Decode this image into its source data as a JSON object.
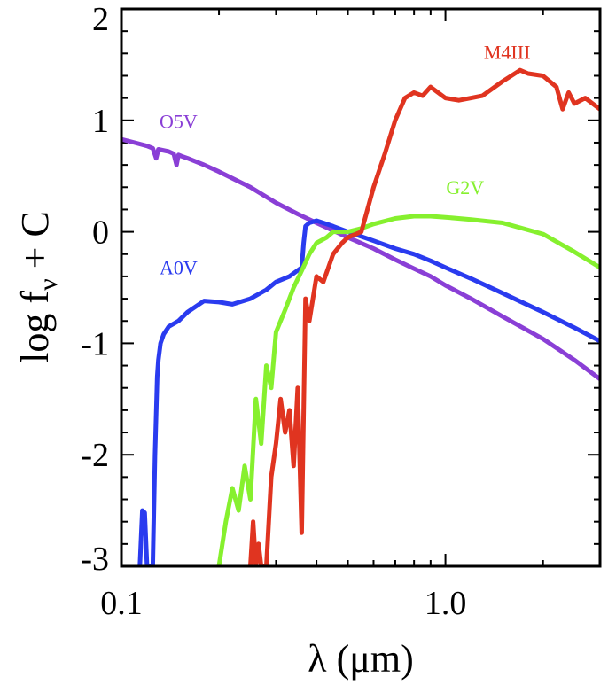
{
  "chart_data": {
    "type": "line",
    "xlabel": "λ (μm)",
    "ylabel": "log f_ν + C",
    "ylabel_main": "log f",
    "ylabel_sub": "ν",
    "ylabel_tail": " + C",
    "xscale": "log",
    "xlim": [
      0.1,
      3.0
    ],
    "ylim": [
      -3,
      2
    ],
    "xticks": [
      {
        "value": 0.1,
        "label": "0.1"
      },
      {
        "value": 1.0,
        "label": "1.0"
      }
    ],
    "yticks": [
      {
        "value": 2,
        "label": "2"
      },
      {
        "value": 1,
        "label": "1"
      },
      {
        "value": 0,
        "label": "0"
      },
      {
        "value": -1,
        "label": "-1"
      },
      {
        "value": -2,
        "label": "-2"
      },
      {
        "value": -3,
        "label": "-3"
      }
    ],
    "grid": false,
    "legend": "none",
    "series": [
      {
        "name": "O5V",
        "color": "#8a3fd6",
        "label_at": [
          0.15,
          0.93
        ],
        "x": [
          0.1,
          0.11,
          0.12,
          0.125,
          0.128,
          0.13,
          0.14,
          0.145,
          0.148,
          0.15,
          0.153,
          0.16,
          0.18,
          0.2,
          0.25,
          0.3,
          0.35,
          0.4,
          0.5,
          0.6,
          0.7,
          0.8,
          0.9,
          1.0,
          1.2,
          1.5,
          2.0,
          2.5,
          3.0
        ],
        "y": [
          0.83,
          0.8,
          0.77,
          0.75,
          0.66,
          0.74,
          0.72,
          0.7,
          0.6,
          0.69,
          0.68,
          0.66,
          0.6,
          0.54,
          0.4,
          0.26,
          0.16,
          0.08,
          -0.05,
          -0.15,
          -0.25,
          -0.33,
          -0.4,
          -0.48,
          -0.6,
          -0.76,
          -0.96,
          -1.15,
          -1.32
        ]
      },
      {
        "name": "A0V",
        "color": "#2a3bef",
        "label_at": [
          0.15,
          -0.38
        ],
        "x": [
          0.114,
          0.116,
          0.118,
          0.12,
          0.122,
          0.125,
          0.127,
          0.129,
          0.13,
          0.132,
          0.135,
          0.14,
          0.15,
          0.16,
          0.18,
          0.2,
          0.22,
          0.25,
          0.28,
          0.3,
          0.33,
          0.36,
          0.365,
          0.37,
          0.38,
          0.4,
          0.42,
          0.45,
          0.5,
          0.6,
          0.7,
          0.8,
          0.9,
          1.0,
          1.2,
          1.5,
          2.0,
          2.5,
          3.0
        ],
        "y": [
          -3.0,
          -2.5,
          -2.52,
          -3.0,
          -3.0,
          -3.0,
          -2.0,
          -1.3,
          -1.15,
          -1.0,
          -0.92,
          -0.85,
          -0.8,
          -0.72,
          -0.62,
          -0.63,
          -0.65,
          -0.6,
          -0.52,
          -0.45,
          -0.4,
          -0.32,
          -0.1,
          0.05,
          0.08,
          0.1,
          0.08,
          0.05,
          0.0,
          -0.08,
          -0.15,
          -0.2,
          -0.26,
          -0.32,
          -0.42,
          -0.55,
          -0.72,
          -0.86,
          -0.98
        ]
      },
      {
        "name": "G2V",
        "color": "#86f02e",
        "label_at": [
          1.15,
          0.34
        ],
        "x": [
          0.2,
          0.21,
          0.22,
          0.23,
          0.24,
          0.25,
          0.26,
          0.27,
          0.28,
          0.29,
          0.3,
          0.32,
          0.34,
          0.36,
          0.38,
          0.4,
          0.43,
          0.45,
          0.5,
          0.55,
          0.6,
          0.7,
          0.8,
          0.9,
          1.0,
          1.2,
          1.5,
          2.0,
          2.5,
          3.0
        ],
        "y": [
          -3.0,
          -2.6,
          -2.3,
          -2.5,
          -2.1,
          -2.4,
          -1.5,
          -1.9,
          -1.2,
          -1.4,
          -0.9,
          -0.7,
          -0.5,
          -0.35,
          -0.2,
          -0.1,
          -0.05,
          0.0,
          0.0,
          0.03,
          0.07,
          0.12,
          0.14,
          0.14,
          0.13,
          0.11,
          0.08,
          -0.02,
          -0.18,
          -0.32
        ]
      },
      {
        "name": "M4III",
        "color": "#e03420",
        "label_at": [
          1.55,
          1.55
        ],
        "x": [
          0.25,
          0.255,
          0.26,
          0.265,
          0.27,
          0.28,
          0.29,
          0.3,
          0.31,
          0.32,
          0.33,
          0.34,
          0.35,
          0.36,
          0.37,
          0.38,
          0.4,
          0.42,
          0.45,
          0.48,
          0.5,
          0.55,
          0.6,
          0.65,
          0.7,
          0.75,
          0.8,
          0.85,
          0.9,
          1.0,
          1.1,
          1.2,
          1.3,
          1.5,
          1.7,
          1.8,
          2.0,
          2.2,
          2.3,
          2.4,
          2.5,
          2.7,
          3.0
        ],
        "y": [
          -3.0,
          -2.6,
          -3.0,
          -2.8,
          -3.0,
          -3.0,
          -2.2,
          -1.9,
          -1.5,
          -1.8,
          -1.6,
          -2.1,
          -1.4,
          -2.7,
          -0.6,
          -0.8,
          -0.4,
          -0.45,
          -0.2,
          -0.1,
          -0.05,
          0.0,
          0.4,
          0.7,
          1.0,
          1.2,
          1.25,
          1.22,
          1.3,
          1.2,
          1.18,
          1.2,
          1.22,
          1.35,
          1.45,
          1.42,
          1.4,
          1.3,
          1.1,
          1.25,
          1.15,
          1.2,
          1.1
        ]
      }
    ]
  }
}
